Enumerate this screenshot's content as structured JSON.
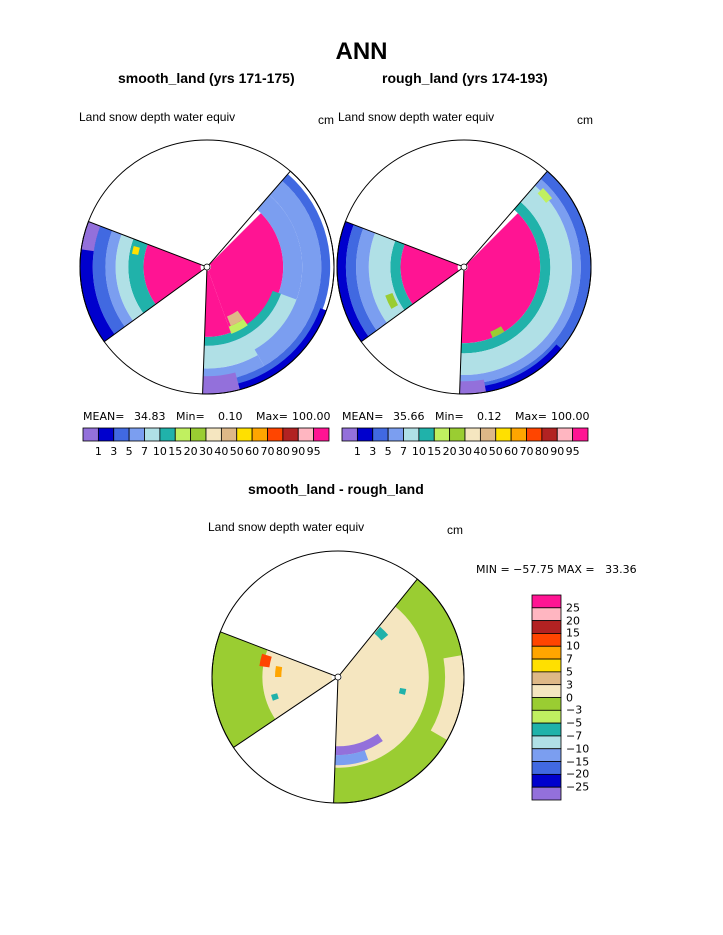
{
  "title": "ANN",
  "panels": [
    {
      "subtitle": "smooth_land (yrs 171-175)",
      "variable": "Land snow depth water equiv",
      "units": "cm",
      "stats": {
        "mean_label": "MEAN=",
        "mean": "34.83",
        "min_label": "Min=",
        "min": "0.10",
        "max_label": "Max=",
        "max": "100.00"
      }
    },
    {
      "subtitle": "rough_land (yrs 174-193)",
      "variable": "Land snow depth water equiv",
      "units": "cm",
      "stats": {
        "mean_label": "MEAN=",
        "mean": "35.66",
        "min_label": "Min=",
        "min": "0.12",
        "max_label": "Max=",
        "max": "100.00"
      }
    },
    {
      "subtitle": "smooth_land - rough_land",
      "variable": "Land snow depth water equiv",
      "units": "cm",
      "stats": {
        "text": "MIN = −57.75 MAX =   33.36"
      }
    }
  ],
  "colorbar_abs": {
    "colors": [
      "#9370DB",
      "#0000CD",
      "#4169E1",
      "#7B9EF0",
      "#B0E0E6",
      "#20B2AA",
      "#C0F060",
      "#9ACD32",
      "#F5E6C0",
      "#DEB887",
      "#FFE000",
      "#FFA500",
      "#FF4500",
      "#B22222",
      "#FFB6C1",
      "#FF1493"
    ],
    "labels": [
      "1",
      "3",
      "5",
      "7",
      "10",
      "15",
      "20",
      "30",
      "40",
      "50",
      "60",
      "70",
      "80",
      "90",
      "95"
    ]
  },
  "colorbar_diff": {
    "colors": [
      "#FF1493",
      "#FFB6C1",
      "#B22222",
      "#FF4500",
      "#FFA500",
      "#FFE000",
      "#DEB887",
      "#F5E6C0",
      "#9ACD32",
      "#C0F060",
      "#20B2AA",
      "#B0E0E6",
      "#7B9EF0",
      "#4169E1",
      "#0000CD",
      "#9370DB"
    ],
    "labels": [
      "25",
      "20",
      "15",
      "10",
      "7",
      "5",
      "3",
      "0",
      "−3",
      "−5",
      "−7",
      "−10",
      "−15",
      "−20",
      "−25"
    ]
  }
}
